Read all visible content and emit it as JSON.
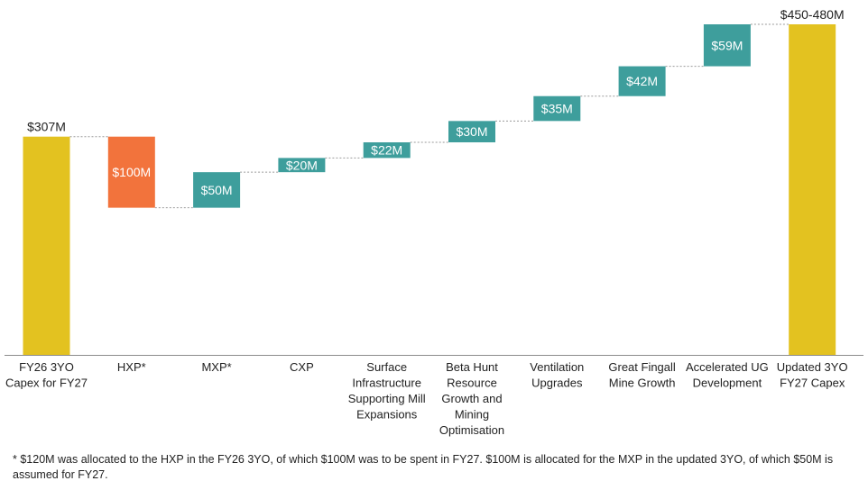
{
  "chart_data": {
    "type": "bar",
    "subtype": "waterfall",
    "ylim": [
      0,
      480
    ],
    "grid": false,
    "legend": "none",
    "bars": [
      {
        "category": [
          "FY26 3YO",
          "Capex for FY27"
        ],
        "kind": "total",
        "start": 0,
        "end": 307,
        "label": "$307M",
        "label_pos": "above"
      },
      {
        "category": [
          "HXP*"
        ],
        "kind": "decrease",
        "start": 307,
        "end": 207,
        "label": "$100M",
        "label_pos": "inside"
      },
      {
        "category": [
          "MXP*"
        ],
        "kind": "increase",
        "start": 207,
        "end": 257,
        "label": "$50M",
        "label_pos": "inside"
      },
      {
        "category": [
          "CXP"
        ],
        "kind": "increase",
        "start": 257,
        "end": 277,
        "label": "$20M",
        "label_pos": "inside"
      },
      {
        "category": [
          "Surface",
          "Infrastructure",
          "Supporting Mill",
          "Expansions"
        ],
        "kind": "increase",
        "start": 277,
        "end": 299,
        "label": "$22M",
        "label_pos": "inside"
      },
      {
        "category": [
          "Beta Hunt",
          "Resource",
          "Growth and",
          "Mining",
          "Optimisation"
        ],
        "kind": "increase",
        "start": 299,
        "end": 329,
        "label": "$30M",
        "label_pos": "inside"
      },
      {
        "category": [
          "Ventilation",
          "Upgrades"
        ],
        "kind": "increase",
        "start": 329,
        "end": 364,
        "label": "$35M",
        "label_pos": "inside"
      },
      {
        "category": [
          "Great Fingall",
          "Mine Growth"
        ],
        "kind": "increase",
        "start": 364,
        "end": 406,
        "label": "$42M",
        "label_pos": "inside"
      },
      {
        "category": [
          "Accelerated UG",
          "Development"
        ],
        "kind": "increase",
        "start": 406,
        "end": 465,
        "label": "$59M",
        "label_pos": "inside"
      },
      {
        "category": [
          "Updated 3YO",
          "FY27 Capex"
        ],
        "kind": "total",
        "start": 0,
        "end": 465,
        "label": "$450-480M",
        "label_pos": "above"
      }
    ],
    "colors": {
      "total": "#E3C220",
      "decrease": "#F2733C",
      "increase": "#3E9E9C",
      "connector": "#9A9A9A",
      "axis": "#8C8C8C"
    }
  },
  "footnote": "* $120M was allocated to the HXP in the FY26 3YO, of which $100M was to be spent in FY27. $100M is allocated for the MXP in the updated 3YO, of which $50M is assumed for FY27."
}
